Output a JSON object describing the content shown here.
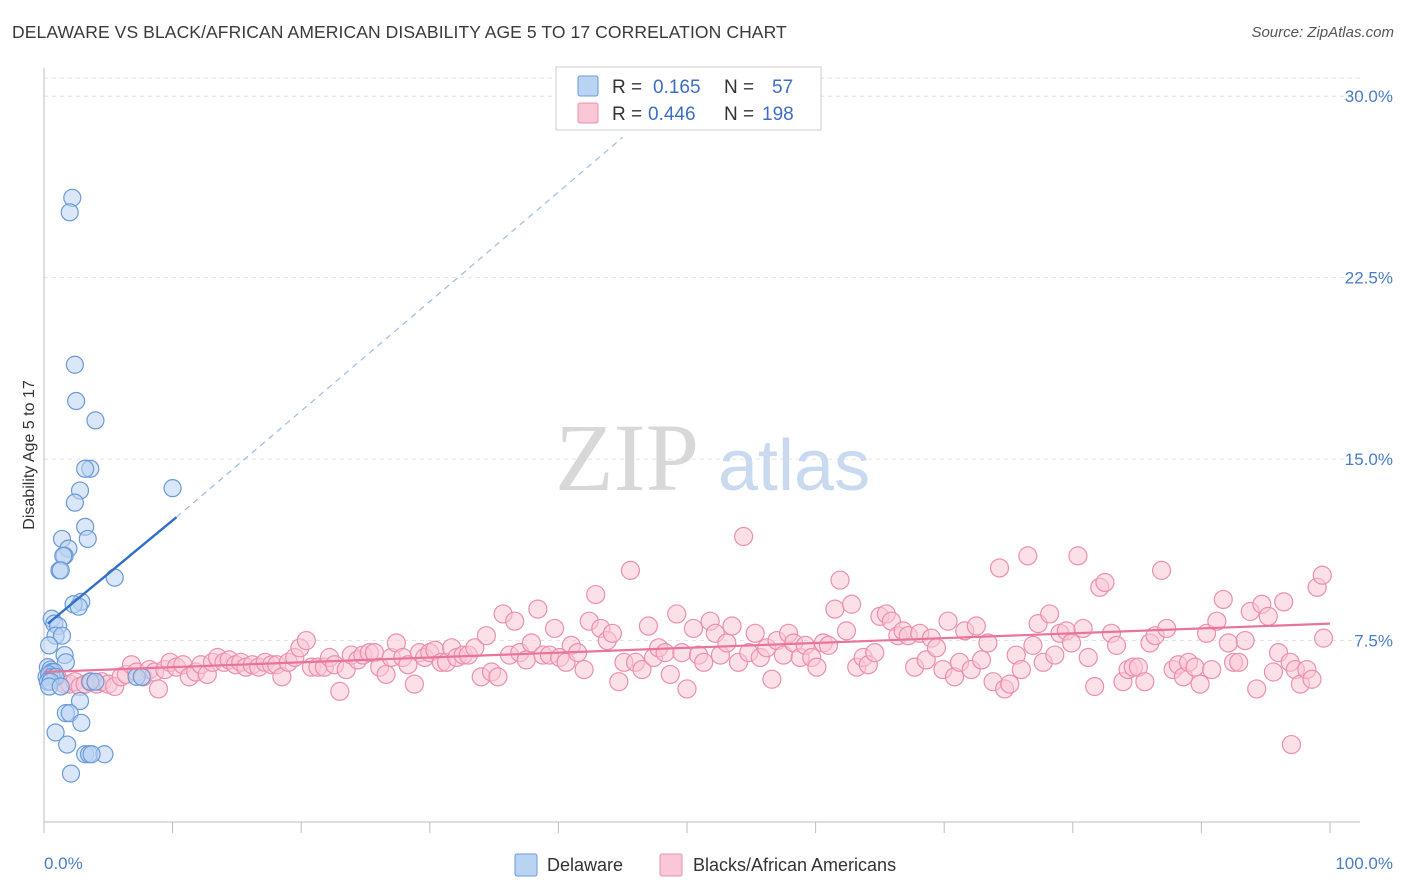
{
  "title": "DELAWARE VS BLACK/AFRICAN AMERICAN DISABILITY AGE 5 TO 17 CORRELATION CHART",
  "source": "Source: ZipAtlas.com",
  "watermark": {
    "zip": "ZIP",
    "atlas": "atlas"
  },
  "legend": {
    "r_label": "R =",
    "n_label": "N =",
    "rows": [
      {
        "r": "0.165",
        "n": "57"
      },
      {
        "r": "0.446",
        "n": "198"
      }
    ]
  },
  "colors": {
    "delaware_fill": "#b9d3f3",
    "delaware_stroke": "#6a9ad8",
    "delaware_line": "#2f6fc6",
    "black_fill": "#f9c7d6",
    "black_stroke": "#ec8fad",
    "black_line": "#e8739b",
    "tick_label": "#4a7cc7",
    "grid": "#e2e2e2"
  },
  "chart_data": {
    "type": "scatter",
    "title": "DELAWARE VS BLACK/AFRICAN AMERICAN DISABILITY AGE 5 TO 17 CORRELATION CHART",
    "xlabel": "",
    "ylabel": "Disability Age 5 to 17",
    "xlim": [
      0,
      100
    ],
    "ylim": [
      0,
      31
    ],
    "x_tick_labels": [
      "0.0%",
      "100.0%"
    ],
    "y_ticks": [
      7.5,
      15.0,
      22.5,
      30.0
    ],
    "y_tick_labels": [
      "7.5%",
      "15.0%",
      "22.5%",
      "30.0%"
    ],
    "grid": "horizontal dashed",
    "legend_position": "bottom",
    "series": [
      {
        "name": "Delaware",
        "r": 0.165,
        "n": 57,
        "trend": {
          "x": [
            0.3,
            10.3
          ],
          "y": [
            8.2,
            12.6
          ]
        },
        "trend_extension": {
          "x": [
            10.3,
            45
          ],
          "y": [
            12.6,
            28.3
          ]
        },
        "points": [
          [
            2.2,
            25.8
          ],
          [
            2.0,
            25.2
          ],
          [
            2.4,
            18.9
          ],
          [
            2.5,
            17.4
          ],
          [
            4.0,
            16.6
          ],
          [
            3.6,
            14.6
          ],
          [
            3.2,
            14.6
          ],
          [
            2.8,
            13.7
          ],
          [
            10.0,
            13.8
          ],
          [
            2.4,
            13.2
          ],
          [
            3.2,
            12.2
          ],
          [
            3.4,
            11.7
          ],
          [
            1.4,
            11.7
          ],
          [
            1.9,
            11.3
          ],
          [
            1.6,
            11.0
          ],
          [
            1.5,
            11.0
          ],
          [
            1.2,
            10.4
          ],
          [
            1.3,
            10.4
          ],
          [
            5.5,
            10.1
          ],
          [
            2.9,
            9.1
          ],
          [
            2.3,
            9.0
          ],
          [
            2.7,
            8.9
          ],
          [
            0.6,
            8.4
          ],
          [
            0.8,
            8.2
          ],
          [
            1.1,
            8.1
          ],
          [
            0.9,
            7.7
          ],
          [
            1.4,
            7.7
          ],
          [
            0.4,
            7.3
          ],
          [
            1.6,
            6.9
          ],
          [
            1.7,
            6.6
          ],
          [
            0.3,
            6.4
          ],
          [
            0.5,
            6.3
          ],
          [
            0.6,
            6.2
          ],
          [
            0.8,
            6.2
          ],
          [
            0.2,
            6.0
          ],
          [
            0.4,
            6.1
          ],
          [
            0.6,
            6.0
          ],
          [
            0.9,
            6.0
          ],
          [
            0.3,
            5.8
          ],
          [
            0.5,
            5.8
          ],
          [
            3.6,
            5.8
          ],
          [
            4.0,
            5.8
          ],
          [
            7.2,
            6.0
          ],
          [
            7.6,
            6.0
          ],
          [
            0.4,
            5.6
          ],
          [
            1.3,
            5.6
          ],
          [
            2.8,
            5.0
          ],
          [
            1.7,
            4.5
          ],
          [
            2.0,
            4.5
          ],
          [
            2.9,
            4.1
          ],
          [
            0.9,
            3.7
          ],
          [
            1.8,
            3.2
          ],
          [
            3.2,
            2.8
          ],
          [
            3.5,
            2.8
          ],
          [
            4.7,
            2.8
          ],
          [
            3.7,
            2.8
          ],
          [
            2.1,
            2.0
          ]
        ]
      },
      {
        "name": "Blacks/African Americans",
        "r": 0.446,
        "n": 198,
        "trend": {
          "x": [
            0,
            100
          ],
          "y": [
            6.2,
            8.2
          ]
        },
        "points": [
          [
            1.0,
            6.0
          ],
          [
            1.6,
            5.7
          ],
          [
            2.0,
            5.7
          ],
          [
            2.4,
            5.8
          ],
          [
            2.8,
            5.6
          ],
          [
            3.2,
            5.7
          ],
          [
            3.6,
            5.8
          ],
          [
            4.1,
            5.7
          ],
          [
            4.5,
            5.8
          ],
          [
            5.0,
            5.7
          ],
          [
            5.5,
            5.6
          ],
          [
            6.0,
            6.0
          ],
          [
            6.4,
            6.1
          ],
          [
            6.8,
            6.5
          ],
          [
            7.2,
            6.2
          ],
          [
            7.7,
            6.0
          ],
          [
            8.2,
            6.3
          ],
          [
            8.6,
            6.2
          ],
          [
            8.9,
            5.5
          ],
          [
            9.4,
            6.3
          ],
          [
            9.8,
            6.6
          ],
          [
            10.3,
            6.4
          ],
          [
            10.8,
            6.5
          ],
          [
            11.3,
            6.0
          ],
          [
            11.8,
            6.2
          ],
          [
            12.2,
            6.5
          ],
          [
            12.7,
            6.1
          ],
          [
            13.1,
            6.6
          ],
          [
            13.5,
            6.8
          ],
          [
            14.0,
            6.6
          ],
          [
            14.4,
            6.7
          ],
          [
            14.9,
            6.5
          ],
          [
            15.3,
            6.6
          ],
          [
            15.7,
            6.4
          ],
          [
            16.2,
            6.5
          ],
          [
            16.7,
            6.4
          ],
          [
            17.2,
            6.6
          ],
          [
            17.7,
            6.5
          ],
          [
            18.1,
            6.5
          ],
          [
            18.5,
            6.0
          ],
          [
            19.0,
            6.6
          ],
          [
            19.5,
            6.8
          ],
          [
            19.9,
            7.2
          ],
          [
            20.4,
            7.5
          ],
          [
            20.8,
            6.4
          ],
          [
            21.3,
            6.4
          ],
          [
            21.8,
            6.4
          ],
          [
            22.2,
            6.8
          ],
          [
            22.6,
            6.5
          ],
          [
            23.0,
            5.4
          ],
          [
            23.5,
            6.3
          ],
          [
            23.9,
            6.9
          ],
          [
            24.4,
            6.7
          ],
          [
            24.8,
            6.9
          ],
          [
            25.3,
            7.0
          ],
          [
            25.7,
            7.0
          ],
          [
            26.1,
            6.4
          ],
          [
            26.6,
            6.1
          ],
          [
            27.0,
            6.8
          ],
          [
            27.4,
            7.4
          ],
          [
            27.9,
            6.8
          ],
          [
            28.3,
            6.5
          ],
          [
            28.8,
            5.7
          ],
          [
            29.2,
            7.0
          ],
          [
            29.6,
            6.8
          ],
          [
            30.0,
            7.0
          ],
          [
            30.4,
            7.1
          ],
          [
            30.9,
            6.6
          ],
          [
            31.3,
            6.6
          ],
          [
            31.7,
            7.2
          ],
          [
            32.1,
            6.8
          ],
          [
            32.6,
            6.9
          ],
          [
            33.0,
            6.9
          ],
          [
            33.5,
            7.2
          ],
          [
            34.0,
            6.0
          ],
          [
            34.4,
            7.7
          ],
          [
            34.8,
            6.2
          ],
          [
            35.3,
            6.0
          ],
          [
            35.7,
            8.6
          ],
          [
            36.2,
            6.9
          ],
          [
            36.6,
            8.3
          ],
          [
            37.0,
            7.0
          ],
          [
            37.5,
            6.7
          ],
          [
            37.9,
            7.4
          ],
          [
            38.4,
            8.8
          ],
          [
            38.8,
            6.9
          ],
          [
            39.3,
            6.9
          ],
          [
            39.7,
            8.0
          ],
          [
            40.1,
            6.8
          ],
          [
            40.6,
            6.6
          ],
          [
            41.0,
            7.3
          ],
          [
            41.5,
            7.0
          ],
          [
            42.0,
            6.3
          ],
          [
            42.4,
            8.3
          ],
          [
            42.9,
            9.4
          ],
          [
            43.3,
            8.0
          ],
          [
            43.8,
            7.5
          ],
          [
            44.2,
            7.8
          ],
          [
            44.7,
            5.8
          ],
          [
            45.1,
            6.6
          ],
          [
            45.6,
            10.4
          ],
          [
            46.0,
            6.6
          ],
          [
            46.5,
            6.3
          ],
          [
            47.0,
            8.1
          ],
          [
            47.4,
            6.8
          ],
          [
            47.8,
            7.2
          ],
          [
            48.3,
            7.0
          ],
          [
            48.7,
            6.1
          ],
          [
            49.2,
            8.6
          ],
          [
            49.6,
            7.0
          ],
          [
            50.0,
            5.5
          ],
          [
            50.5,
            8.0
          ],
          [
            50.9,
            6.9
          ],
          [
            51.3,
            6.6
          ],
          [
            51.8,
            8.3
          ],
          [
            52.2,
            7.8
          ],
          [
            52.6,
            6.9
          ],
          [
            53.1,
            7.4
          ],
          [
            53.5,
            8.1
          ],
          [
            54.0,
            6.6
          ],
          [
            54.4,
            11.8
          ],
          [
            54.8,
            7.0
          ],
          [
            55.3,
            7.8
          ],
          [
            55.7,
            6.8
          ],
          [
            56.2,
            7.2
          ],
          [
            56.6,
            5.9
          ],
          [
            57.0,
            7.5
          ],
          [
            57.5,
            6.9
          ],
          [
            57.9,
            7.8
          ],
          [
            58.3,
            7.4
          ],
          [
            58.8,
            6.8
          ],
          [
            59.2,
            7.3
          ],
          [
            59.7,
            6.8
          ],
          [
            60.1,
            6.4
          ],
          [
            60.6,
            7.4
          ],
          [
            61.0,
            7.3
          ],
          [
            61.5,
            8.8
          ],
          [
            61.9,
            10.0
          ],
          [
            62.4,
            7.9
          ],
          [
            62.8,
            9.0
          ],
          [
            63.2,
            6.4
          ],
          [
            63.7,
            6.8
          ],
          [
            64.1,
            6.5
          ],
          [
            64.6,
            7.0
          ],
          [
            65.0,
            8.5
          ],
          [
            65.5,
            8.6
          ],
          [
            65.9,
            8.3
          ],
          [
            66.4,
            7.7
          ],
          [
            66.8,
            7.9
          ],
          [
            67.2,
            7.7
          ],
          [
            67.7,
            6.4
          ],
          [
            68.1,
            7.8
          ],
          [
            68.6,
            6.7
          ],
          [
            69.0,
            7.6
          ],
          [
            69.4,
            7.2
          ],
          [
            69.9,
            6.3
          ],
          [
            70.3,
            8.3
          ],
          [
            70.8,
            6.0
          ],
          [
            71.2,
            6.6
          ],
          [
            71.6,
            7.9
          ],
          [
            72.1,
            6.3
          ],
          [
            72.5,
            8.1
          ],
          [
            72.9,
            6.7
          ],
          [
            73.4,
            7.4
          ],
          [
            73.8,
            5.8
          ],
          [
            74.3,
            10.5
          ],
          [
            74.7,
            5.5
          ],
          [
            75.1,
            5.7
          ],
          [
            75.6,
            6.9
          ],
          [
            76.0,
            6.3
          ],
          [
            76.5,
            11.0
          ],
          [
            76.9,
            7.3
          ],
          [
            77.3,
            8.2
          ],
          [
            77.7,
            6.6
          ],
          [
            78.2,
            8.6
          ],
          [
            78.6,
            6.9
          ],
          [
            79.0,
            7.8
          ],
          [
            79.5,
            7.9
          ],
          [
            79.9,
            7.4
          ],
          [
            80.4,
            11.0
          ],
          [
            80.8,
            8.0
          ],
          [
            81.2,
            6.8
          ],
          [
            81.7,
            5.6
          ],
          [
            82.1,
            9.7
          ],
          [
            82.5,
            9.9
          ],
          [
            83.0,
            7.8
          ],
          [
            83.4,
            7.3
          ],
          [
            83.9,
            5.8
          ],
          [
            84.3,
            6.3
          ],
          [
            84.7,
            6.4
          ],
          [
            85.1,
            6.4
          ],
          [
            85.6,
            5.8
          ],
          [
            86.0,
            7.4
          ],
          [
            86.4,
            7.7
          ],
          [
            86.9,
            10.4
          ],
          [
            87.3,
            8.0
          ],
          [
            87.8,
            6.3
          ],
          [
            88.2,
            6.5
          ],
          [
            88.6,
            6.0
          ],
          [
            89.0,
            6.6
          ],
          [
            89.5,
            6.4
          ],
          [
            89.9,
            5.7
          ],
          [
            90.4,
            7.8
          ],
          [
            90.8,
            6.3
          ],
          [
            91.2,
            8.3
          ],
          [
            91.7,
            9.2
          ],
          [
            92.1,
            7.4
          ],
          [
            92.5,
            6.6
          ],
          [
            92.9,
            6.6
          ],
          [
            93.4,
            7.5
          ],
          [
            93.8,
            8.7
          ],
          [
            94.3,
            5.5
          ],
          [
            94.7,
            9.0
          ],
          [
            95.2,
            8.5
          ],
          [
            95.6,
            6.2
          ],
          [
            96.0,
            7.0
          ],
          [
            96.4,
            9.1
          ],
          [
            96.9,
            6.6
          ],
          [
            97.3,
            6.3
          ],
          [
            97.7,
            5.7
          ],
          [
            98.2,
            6.3
          ],
          [
            98.6,
            5.9
          ],
          [
            99.0,
            9.7
          ],
          [
            99.4,
            10.2
          ],
          [
            97.0,
            3.2
          ],
          [
            99.5,
            7.6
          ]
        ]
      }
    ]
  },
  "bottom_legend": [
    "Delaware",
    "Blacks/African Americans"
  ]
}
